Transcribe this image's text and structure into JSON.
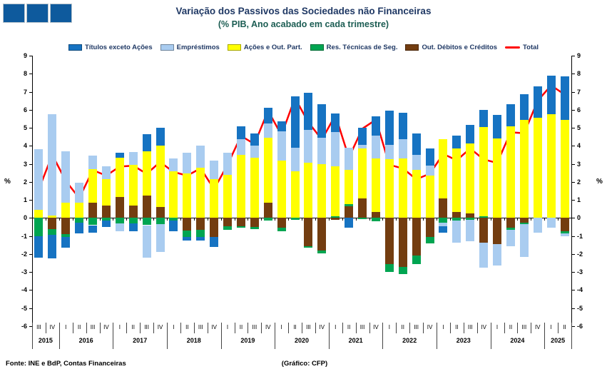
{
  "header": {
    "title": "Variação dos Passivos das Sociedades não Financeiras",
    "subtitle": "(% PIB, Ano acabado em cada trimestre)",
    "title_color": "#1F3864",
    "subtitle_color": "#1C5D53"
  },
  "logo": {
    "name": "three-squares-logo",
    "square_color": "#0E5A9D",
    "square_count": 3
  },
  "footer": {
    "source": "Fonte: INE e BdP, Contas Financeiras",
    "credit": "(Gráfico: CFP)"
  },
  "chart_data": {
    "type": "bar",
    "stacked": true,
    "line_overlay": true,
    "title": "Variação dos Passivos das Sociedades não Financeiras",
    "subtitle": "(% PIB, Ano acabado em cada trimestre)",
    "ylabel_left": "%",
    "ylabel_right": "%",
    "ylim": [
      -6,
      9
    ],
    "ytick_step": 1,
    "grid": false,
    "legend_position": "top",
    "x_groups": [
      {
        "year": "2015",
        "quarters": [
          "III",
          "IV"
        ]
      },
      {
        "year": "2016",
        "quarters": [
          "I",
          "II",
          "III",
          "IV"
        ]
      },
      {
        "year": "2017",
        "quarters": [
          "I",
          "II",
          "III",
          "IV"
        ]
      },
      {
        "year": "2018",
        "quarters": [
          "I",
          "II",
          "III",
          "IV"
        ]
      },
      {
        "year": "2019",
        "quarters": [
          "I",
          "II",
          "III",
          "IV"
        ]
      },
      {
        "year": "2020",
        "quarters": [
          "I",
          "II",
          "III",
          "IV"
        ]
      },
      {
        "year": "2021",
        "quarters": [
          "I",
          "II",
          "III",
          "IV"
        ]
      },
      {
        "year": "2022",
        "quarters": [
          "I",
          "II",
          "III",
          "IV"
        ]
      },
      {
        "year": "2023",
        "quarters": [
          "I",
          "II",
          "III",
          "IV"
        ]
      },
      {
        "year": "2024",
        "quarters": [
          "I",
          "II",
          "III",
          "IV"
        ]
      },
      {
        "year": "2025",
        "quarters": [
          "I",
          "II"
        ]
      }
    ],
    "series": [
      {
        "name": "Títulos exceto Ações",
        "color": "#1673C2",
        "values": [
          -1.2,
          -1.3,
          -0.6,
          -0.6,
          -0.4,
          -0.35,
          0.25,
          -0.45,
          0.95,
          1.0,
          -0.6,
          -0.2,
          -0.2,
          -0.55,
          0,
          0.75,
          0.7,
          0.85,
          0.55,
          2.85,
          2.05,
          1.85,
          1.05,
          -0.55,
          0.95,
          1.1,
          1.9,
          1.5,
          1.2,
          0.95,
          -0.35,
          0.7,
          1.0,
          0.95,
          1.3,
          1.2,
          1.4,
          1.75,
          2.15,
          2.4
        ]
      },
      {
        "name": "Empréstimos",
        "color": "#A9CCF0",
        "values": [
          3.35,
          5.6,
          2.85,
          1.1,
          0.75,
          0.7,
          -0.45,
          0.7,
          -1.8,
          -1.55,
          0.7,
          1.15,
          1.2,
          1.05,
          1.2,
          0.85,
          0.65,
          0.8,
          1.6,
          1.3,
          1.85,
          1.45,
          1.9,
          1.25,
          0.2,
          1.25,
          0.8,
          1.05,
          0.85,
          0.55,
          -0.2,
          -1.2,
          -1.2,
          -1.4,
          -1.2,
          -0.9,
          -1.8,
          -0.8,
          -0.55,
          -0.15
        ]
      },
      {
        "name": "Ações e Out. Part.",
        "color": "#FFFF00",
        "values": [
          0.45,
          0.15,
          0.85,
          0.85,
          1.85,
          1.45,
          2.2,
          2.25,
          2.45,
          3.4,
          2.6,
          2.45,
          2.8,
          2.15,
          2.4,
          3.5,
          3.35,
          3.6,
          3.2,
          2.6,
          3.05,
          3.0,
          2.75,
          1.9,
          2.75,
          2.95,
          3.25,
          3.3,
          2.65,
          2.35,
          3.25,
          3.5,
          3.9,
          4.95,
          4.4,
          5.1,
          5.45,
          5.55,
          5.75,
          5.45
        ]
      },
      {
        "name": "Res. Técnicas de Seg.",
        "color": "#00A551",
        "values": [
          -1.0,
          -0.35,
          -0.15,
          -0.25,
          -0.4,
          -0.15,
          -0.3,
          -0.3,
          -0.4,
          -0.35,
          -0.15,
          -0.35,
          -0.4,
          0,
          -0.2,
          -0.1,
          -0.1,
          -0.15,
          -0.2,
          -0.1,
          -0.1,
          -0.15,
          0.1,
          0.1,
          -0.05,
          -0.2,
          -0.45,
          -0.4,
          -0.45,
          -0.35,
          -0.25,
          -0.15,
          -0.1,
          0.1,
          0,
          -0.1,
          -0.1,
          0,
          0,
          -0.1
        ]
      },
      {
        "name": "Out. Débitos e Créditos",
        "color": "#733D10",
        "values": [
          0,
          -0.6,
          -0.9,
          0,
          0.85,
          0.7,
          1.15,
          0.7,
          1.25,
          0.6,
          0,
          -0.7,
          -0.65,
          -1.05,
          -0.45,
          -0.45,
          -0.5,
          0.85,
          -0.55,
          0,
          -1.55,
          -1.8,
          -0.1,
          0.65,
          1.1,
          0.35,
          -2.55,
          -2.7,
          -2.1,
          -1.05,
          1.1,
          0.35,
          0.25,
          -1.35,
          -1.45,
          -0.55,
          -0.25,
          0,
          0,
          -0.75
        ]
      }
    ],
    "line_series": {
      "name": "Total",
      "color": "#FF0000",
      "values": [
        1.6,
        3.5,
        2.05,
        1.1,
        2.65,
        2.35,
        2.85,
        2.9,
        2.45,
        3.1,
        2.55,
        2.35,
        2.75,
        1.6,
        2.95,
        4.55,
        4.1,
        5.95,
        4.6,
        6.65,
        5.3,
        4.35,
        5.7,
        3.35,
        4.95,
        5.45,
        2.95,
        2.75,
        2.15,
        2.45,
        3.55,
        3.2,
        3.85,
        3.25,
        3.05,
        4.75,
        4.7,
        6.5,
        7.35,
        6.85
      ]
    }
  }
}
